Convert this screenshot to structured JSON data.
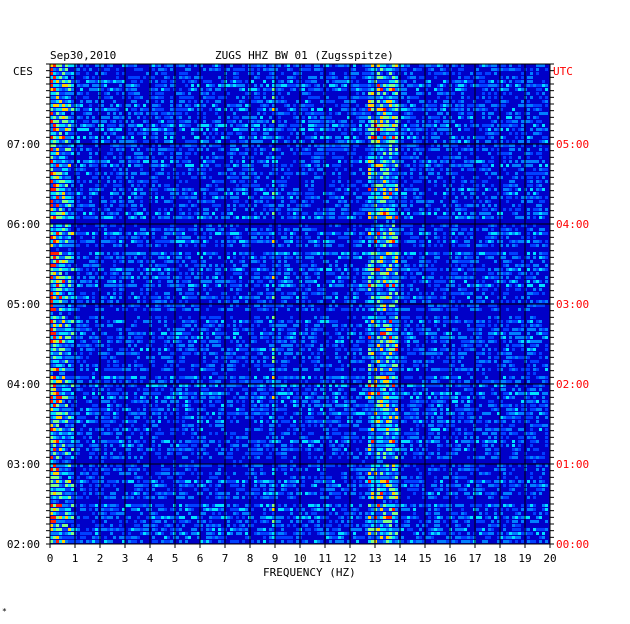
{
  "chart_data": {
    "type": "heatmap",
    "date": "Sep30,2010",
    "title": "ZUGS HHZ BW 01 (Zugsspitze)",
    "xlabel": "FREQUENCY (HZ)",
    "xlim": [
      0,
      20
    ],
    "x_ticks": [
      "0",
      "1",
      "2",
      "3",
      "4",
      "5",
      "6",
      "7",
      "8",
      "9",
      "10",
      "11",
      "12",
      "13",
      "14",
      "15",
      "16",
      "17",
      "18",
      "19",
      "20"
    ],
    "left_axis_label": "CES",
    "right_axis_label": "UTC",
    "left_time_ticks": [
      "07:00",
      "06:00",
      "05:00",
      "04:00",
      "03:00",
      "02:00"
    ],
    "right_time_ticks": [
      "05:00",
      "04:00",
      "03:00",
      "02:00",
      "01:00",
      "00:00"
    ],
    "colors": {
      "background": "#0000c8",
      "grid": "#000000",
      "utc_labels": "#ff0000",
      "ces_labels": "#000000"
    },
    "features": [
      {
        "description": "strong low-frequency energy",
        "freq_range_hz": [
          0,
          1
        ]
      },
      {
        "description": "persistent band",
        "freq_range_hz": [
          12.8,
          14.0
        ]
      },
      {
        "description": "intermittent line",
        "freq_hz": 9
      }
    ]
  },
  "footer_mark": "*"
}
